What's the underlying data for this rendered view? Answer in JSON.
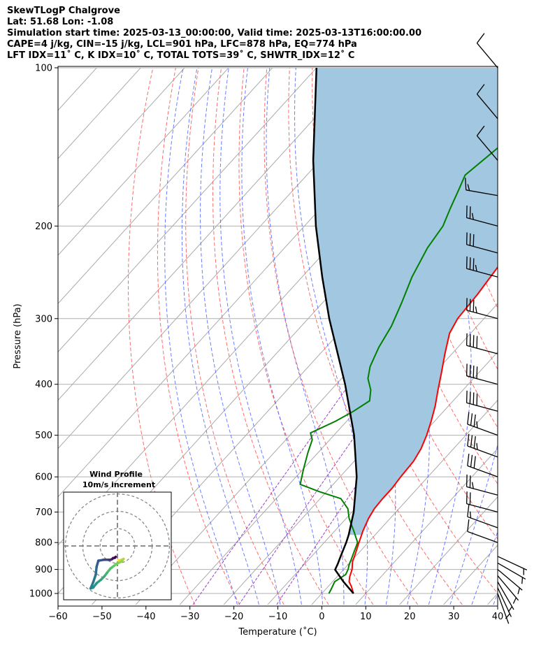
{
  "header": {
    "line1": "SkewTLogP Chalgrove",
    "line2": "Lat: 51.68   Lon: -1.08",
    "line3": "Simulation start time: 2025-03-13_00:00:00, Valid time: 2025-03-13T16:00:00.00",
    "line4": "CAPE=4 j/kg, CIN=-15 j/kg, LCL=901 hPa, LFC=878 hPa, EQ=774 hPa",
    "line5": "LFT IDX=11˚ C, K IDX=10˚ C, TOTAL TOTS=39˚ C, SHWTR_IDX=12˚ C"
  },
  "chart_data": {
    "type": "line",
    "subtype": "skew-t log-p",
    "xlabel": "Temperature (˚C)",
    "ylabel": "Pressure (hPa)",
    "xlim": [
      -60,
      40
    ],
    "ylim": [
      1050,
      100
    ],
    "yscale": "log",
    "x_ticks": [
      -60,
      -50,
      -40,
      -30,
      -20,
      -10,
      0,
      10,
      20,
      30,
      40
    ],
    "x_tick_labels": [
      "−60",
      "−50",
      "−40",
      "−30",
      "−20",
      "−10",
      "0",
      "10",
      "20",
      "30",
      "40"
    ],
    "y_ticks": [
      1000,
      900,
      800,
      700,
      600,
      500,
      400,
      300,
      200,
      100
    ],
    "y_tick_labels": [
      "1000",
      "900",
      "800",
      "700",
      "600",
      "500",
      "400",
      "300",
      "200",
      "100"
    ],
    "grid": true,
    "colors": {
      "temperature": "#ff0000",
      "dewpoint": "#008000",
      "parcel": "#000000",
      "cape_fill": "#a2c7e0",
      "dry_adiabat": "#ff6b6b",
      "moist_adiabat": "#4a5cff",
      "mixing_ratio": "#9b3fc6",
      "isotherm": "#aaaaaa"
    },
    "series": [
      {
        "key": "temperature",
        "pressure": [
          1000,
          970,
          950,
          930,
          900,
          870,
          840,
          800,
          760,
          720,
          690,
          660,
          630,
          600,
          560,
          530,
          500,
          470,
          440,
          410,
          380,
          350,
          320,
          300,
          270,
          240,
          210,
          200,
          190,
          180,
          170,
          160,
          150,
          140,
          130,
          120,
          110,
          100
        ],
        "temperature": [
          7.2,
          5.3,
          3.8,
          2.9,
          1.9,
          0.4,
          -0.6,
          -2.1,
          -3.6,
          -4.9,
          -5.6,
          -5.8,
          -5.8,
          -6.2,
          -6.5,
          -7.4,
          -8.9,
          -10.8,
          -13.0,
          -15.7,
          -18.5,
          -21.6,
          -24.8,
          -26.0,
          -26.5,
          -27.5,
          -28.7,
          -29.2,
          -29.6,
          -29.6,
          -29.6,
          -29.7,
          -30.0,
          -30.8,
          -32.0,
          -34.5,
          -36.0,
          -37.5
        ]
      },
      {
        "key": "dewpoint",
        "pressure": [
          1000,
          980,
          950,
          920,
          900,
          880,
          860,
          830,
          800,
          760,
          720,
          690,
          660,
          640,
          620,
          580,
          540,
          510,
          495,
          470,
          450,
          430,
          410,
          390,
          370,
          340,
          310,
          280,
          250,
          220,
          200,
          185,
          170,
          160,
          140,
          120,
          100
        ],
        "temperature": [
          1.6,
          1.2,
          0.5,
          1.5,
          1.0,
          0.2,
          -0.4,
          -1.4,
          -2.4,
          -5.7,
          -9.3,
          -11.6,
          -15.3,
          -21.7,
          -27.5,
          -29.9,
          -32.3,
          -34.0,
          -35.8,
          -32.5,
          -30.5,
          -29.0,
          -31.0,
          -34.0,
          -36.0,
          -38.0,
          -39.5,
          -42.0,
          -45.0,
          -47.5,
          -48.5,
          -50.5,
          -52.5,
          -54.0,
          -52.0,
          -50.0,
          -48.0
        ]
      },
      {
        "key": "parcel",
        "pressure": [
          1000,
          950,
          901,
          878,
          850,
          800,
          774,
          700,
          600,
          500,
          400,
          300,
          250,
          200,
          150,
          100
        ],
        "temperature": [
          7.2,
          2.5,
          -1.9,
          -2.5,
          -3.4,
          -5.0,
          -6.0,
          -9.6,
          -16.2,
          -25.4,
          -38.0,
          -55.2,
          -65.4,
          -77.4,
          -91.6,
          -110.0
        ]
      }
    ],
    "wind_barbs": {
      "pressure": [
        1000,
        975,
        950,
        925,
        900,
        875,
        850,
        800,
        750,
        700,
        650,
        600,
        550,
        500,
        450,
        400,
        350,
        300,
        250,
        225,
        200,
        175,
        150,
        125,
        100
      ],
      "direction_deg": [
        160,
        155,
        150,
        140,
        130,
        120,
        115,
        290,
        290,
        285,
        285,
        290,
        290,
        290,
        285,
        285,
        285,
        285,
        285,
        285,
        285,
        280,
        320,
        320,
        320
      ],
      "speed_kt": [
        3,
        5,
        6,
        6,
        6,
        5,
        5,
        12,
        18,
        23,
        29,
        30,
        35,
        39,
        41,
        41,
        41,
        39,
        37,
        30,
        28,
        18,
        12,
        12,
        12
      ]
    },
    "inset": {
      "title": "Wind Profile",
      "subtitle": "10m/s increment",
      "ring_radius_ms": [
        10,
        20,
        30
      ],
      "hodograph_u": [
        0.5,
        1.2,
        2.3,
        3.5,
        2.5,
        0.0,
        -2.0,
        -4.0,
        -6.0,
        -7.5,
        -9.5,
        -12.0,
        -14.0,
        -15.5,
        -14.0,
        -12.5,
        -12.0,
        -11.0,
        -8.0,
        -5.0,
        -4.0,
        -3.0,
        -2.5,
        -1.5,
        -1.0
      ],
      "hodograph_v": [
        -8.0,
        -8.5,
        -8.0,
        -7.5,
        -9.0,
        -10.0,
        -11.5,
        -13.0,
        -15.5,
        -17.5,
        -19.5,
        -21.5,
        -24.0,
        -24.5,
        -21.0,
        -16.5,
        -12.0,
        -8.5,
        -8.0,
        -8.0,
        -8.0,
        -7.5,
        -7.0,
        -6.8,
        -6.3
      ]
    }
  }
}
